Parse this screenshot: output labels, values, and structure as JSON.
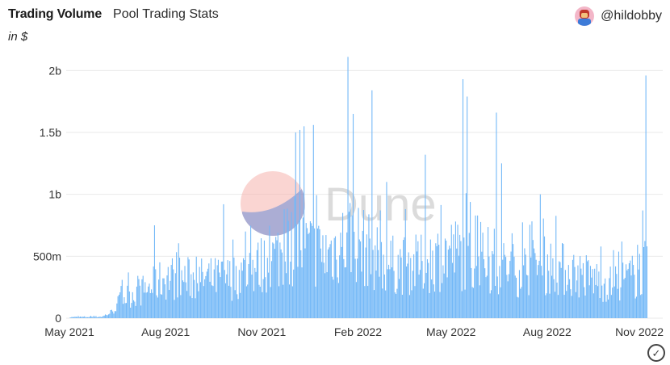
{
  "header": {
    "title": "Trading Volume",
    "subtitle": "Pool Trading Stats",
    "unit": "in $"
  },
  "author": {
    "handle": "@hildobby",
    "avatar_icon": "avatar-icon"
  },
  "watermark": "Dune",
  "status_icon": "check-circle-icon",
  "colors": {
    "bar": "#73b8f7",
    "grid": "#e9e9e9",
    "watermark_red": "#f4a3a0",
    "watermark_blue": "#5b86d6"
  },
  "chart_data": {
    "type": "bar",
    "title": "",
    "xlabel": "",
    "ylabel": "",
    "ylim": [
      0,
      2100000000
    ],
    "y_ticks": [
      {
        "value": 0,
        "label": "0"
      },
      {
        "value": 500000000,
        "label": "500m"
      },
      {
        "value": 1000000000,
        "label": "1b"
      },
      {
        "value": 1500000000,
        "label": "1.5b"
      },
      {
        "value": 2000000000,
        "label": "2b"
      }
    ],
    "x_ticks": [
      {
        "date": "2021-05-01",
        "label": "May 2021"
      },
      {
        "date": "2021-08-01",
        "label": "Aug 2021"
      },
      {
        "date": "2021-11-01",
        "label": "Nov 2021"
      },
      {
        "date": "2022-02-01",
        "label": "Feb 2022"
      },
      {
        "date": "2022-05-01",
        "label": "May 2022"
      },
      {
        "date": "2022-08-01",
        "label": "Aug 2022"
      },
      {
        "date": "2022-11-01",
        "label": "Nov 2022"
      }
    ],
    "date_range": [
      "2021-05-01",
      "2022-11-01"
    ],
    "granularity": "daily",
    "series": [
      {
        "monthly_keypoints": [
          [
            "2021-05-01",
            10000000
          ],
          [
            "2021-06-01",
            15000000
          ],
          [
            "2021-06-10",
            60000000
          ],
          [
            "2021-06-20",
            200000000
          ],
          [
            "2021-07-01",
            240000000
          ],
          [
            "2021-07-15",
            290000000
          ],
          [
            "2021-08-01",
            400000000
          ],
          [
            "2021-09-01",
            380000000
          ],
          [
            "2021-10-01",
            390000000
          ],
          [
            "2021-11-01",
            520000000
          ],
          [
            "2021-12-01",
            720000000
          ],
          [
            "2022-01-01",
            620000000
          ],
          [
            "2022-01-25",
            800000000
          ],
          [
            "2022-02-15",
            620000000
          ],
          [
            "2022-03-01",
            520000000
          ],
          [
            "2022-04-01",
            520000000
          ],
          [
            "2022-05-01",
            650000000
          ],
          [
            "2022-06-01",
            540000000
          ],
          [
            "2022-07-01",
            470000000
          ],
          [
            "2022-08-01",
            520000000
          ],
          [
            "2022-09-01",
            430000000
          ],
          [
            "2022-10-01",
            330000000
          ],
          [
            "2022-10-25",
            420000000
          ],
          [
            "2022-11-01",
            500000000
          ]
        ],
        "spikes": [
          [
            "2021-07-21",
            750000000
          ],
          [
            "2021-09-25",
            920000000
          ],
          [
            "2021-11-22",
            880000000
          ],
          [
            "2021-12-03",
            1500000000
          ],
          [
            "2021-12-07",
            1520000000
          ],
          [
            "2021-12-11",
            1550000000
          ],
          [
            "2021-12-20",
            1560000000
          ],
          [
            "2022-01-22",
            2110000000
          ],
          [
            "2022-01-27",
            1650000000
          ],
          [
            "2022-02-14",
            1840000000
          ],
          [
            "2022-02-28",
            1100000000
          ],
          [
            "2022-04-06",
            1320000000
          ],
          [
            "2022-05-12",
            1930000000
          ],
          [
            "2022-05-16",
            1790000000
          ],
          [
            "2022-06-13",
            1660000000
          ],
          [
            "2022-06-18",
            1250000000
          ],
          [
            "2022-07-25",
            1000000000
          ],
          [
            "2022-10-31",
            870000000
          ],
          [
            "2022-11-03",
            1960000000
          ]
        ]
      }
    ]
  }
}
